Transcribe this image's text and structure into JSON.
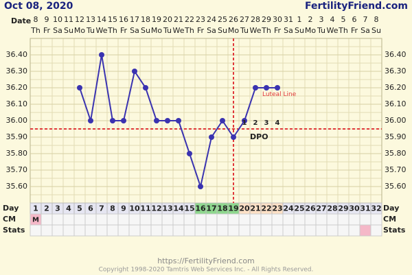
{
  "header": {
    "date": "Oct 08, 2020",
    "site": "FertilityFriend.com"
  },
  "chart_data": {
    "type": "line",
    "row_labels": {
      "date": "Date",
      "day": "Day",
      "cm": "CM",
      "stats": "Stats"
    },
    "x": [
      1,
      2,
      3,
      4,
      5,
      6,
      7,
      8,
      9,
      10,
      11,
      12,
      13,
      14,
      15,
      16,
      17,
      18,
      19,
      20,
      21,
      22,
      23,
      24,
      25,
      26,
      27,
      28,
      29,
      30,
      31,
      32
    ],
    "dates": [
      8,
      9,
      10,
      11,
      12,
      13,
      14,
      15,
      16,
      17,
      18,
      19,
      20,
      21,
      22,
      23,
      24,
      25,
      26,
      27,
      28,
      29,
      30,
      31,
      1,
      2,
      3,
      4,
      5,
      6,
      7,
      8
    ],
    "weekdays": [
      "Th",
      "Fr",
      "Sa",
      "Su",
      "Mo",
      "Tu",
      "We",
      "Th",
      "Fr",
      "Sa",
      "Su",
      "Mo",
      "Tu",
      "We",
      "Th",
      "Fr",
      "Sa",
      "Su",
      "Mo",
      "Tu",
      "We",
      "Th",
      "Fr",
      "Sa",
      "Su",
      "Mo",
      "Tu",
      "We",
      "Th",
      "Fr",
      "Sa",
      "Su"
    ],
    "series": [
      {
        "color": "#3a33b0",
        "values": [
          null,
          null,
          null,
          null,
          36.2,
          36.0,
          36.4,
          36.0,
          36.0,
          36.3,
          36.2,
          36.0,
          36.0,
          36.0,
          35.8,
          35.6,
          35.9,
          36.0,
          35.9,
          36.0,
          36.2,
          36.2,
          36.2,
          null,
          null,
          null,
          null,
          null,
          null,
          null,
          null,
          null
        ]
      }
    ],
    "ylim": [
      35.5,
      36.5
    ],
    "yticks": [
      {
        "value": 35.6,
        "label": "35.60"
      },
      {
        "value": 35.7,
        "label": "35.70"
      },
      {
        "value": 35.8,
        "label": "35.80"
      },
      {
        "value": 35.9,
        "label": "35.90"
      },
      {
        "value": 36.0,
        "label": "36.00"
      },
      {
        "value": 36.1,
        "label": "36.10"
      },
      {
        "value": 36.2,
        "label": "36.20"
      },
      {
        "value": 36.3,
        "label": "36.30"
      },
      {
        "value": 36.4,
        "label": "36.40"
      }
    ],
    "grid": true,
    "coverline": 35.95,
    "ovulation_day": 19,
    "dpo": [
      1,
      2,
      3,
      4
    ],
    "dpo_text": "DPO",
    "luteal_text": "Luteal Line",
    "fertile_days": [
      16,
      17,
      18,
      19
    ],
    "luteal_days": [
      20,
      21,
      22,
      23
    ],
    "cm_entries": [
      {
        "day": 1,
        "label": "M"
      }
    ],
    "stats_marked_days": [
      31
    ]
  },
  "footer": {
    "url": "https://FertilityFriend.com",
    "copyright": "Copyright 1998-2020 Tamtris Web Services Inc. - All Rights Reserved."
  }
}
